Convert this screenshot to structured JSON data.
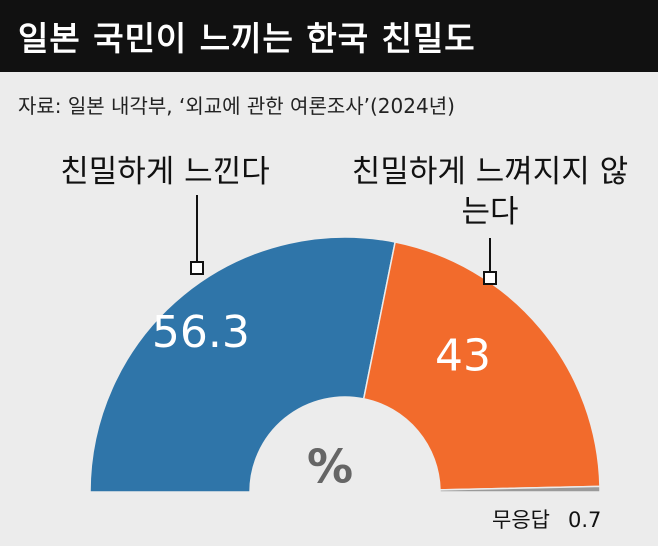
{
  "chart_data": {
    "type": "half-donut",
    "title": "일본 국민이 느끼는 한국 친밀도",
    "subtitle": "자료: 일본 내각부, ‘외교에 관한 여론조사’(2024년)",
    "unit": "%",
    "categories": [
      "친밀하게 느낀다",
      "친밀하게 느껴지지 않는다",
      "무응답"
    ],
    "values": [
      56.3,
      43.0,
      0.7
    ],
    "colors": [
      "#2f75a9",
      "#f26b2c",
      "#9a9a9a"
    ]
  }
}
